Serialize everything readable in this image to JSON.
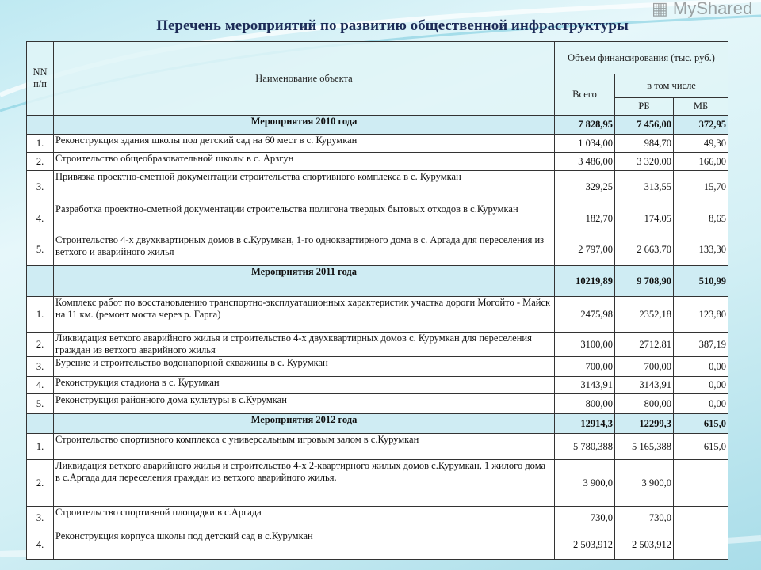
{
  "title": "Перечень мероприятий по развитию общественной инфраструктуры",
  "header": {
    "no": "NN п/п",
    "name": "Наименование объекта",
    "funding": "Объем финансирования (тыс. руб.)",
    "total": "Всего",
    "including": "в том числе",
    "rb": "РБ",
    "mb": "МБ"
  },
  "groups": [
    {
      "label": "Мероприятия 2010 года",
      "total": "7 828,95",
      "rb": "7 456,00",
      "mb": "372,95",
      "items": [
        {
          "no": "1.",
          "name": "Реконструкция здания школы под детский сад на 60 мест в с. Курумкан",
          "total": "1 034,00",
          "rb": "984,70",
          "mb": "49,30"
        },
        {
          "no": "2.",
          "name": "Строительство общеобразовательной школы в с. Арзгун",
          "total": "3 486,00",
          "rb": "3 320,00",
          "mb": "166,00"
        },
        {
          "no": "3.",
          "name": "Привязка проектно-сметной документации строительства спортивного комплекса в с. Курумкан",
          "total": "329,25",
          "rb": "313,55",
          "mb": "15,70"
        },
        {
          "no": "4.",
          "name": "Разработка проектно-сметной документации строительства полигона твердых бытовых отходов в с.Курумкан",
          "total": "182,70",
          "rb": "174,05",
          "mb": "8,65"
        },
        {
          "no": "5.",
          "name": "Строительство 4-х двухквартирных домов в с.Курумкан, 1-го одноквартирного дома в с. Аргада для переселения из ветхого и аварийного жилья",
          "total": "2 797,00",
          "rb": "2 663,70",
          "mb": "133,30"
        }
      ]
    },
    {
      "label": "Мероприятия 2011 года",
      "total": "10219,89",
      "rb": "9 708,90",
      "mb": "510,99",
      "items": [
        {
          "no": "1.",
          "name": " Комплекс работ по восстановлению транспортно-эксплуатационных характеристик участка дороги Могойто - Майск на 11 км. (ремонт моста через р. Гарга)",
          "total": "2475,98",
          "rb": "2352,18",
          "mb": "123,80"
        },
        {
          "no": "2.",
          "name": "Ликвидация ветхого аварийного жилья и строительство 4-х двухквартирных домов с. Курумкан для переселения граждан из ветхого аварийного жилья",
          "total": "3100,00",
          "rb": "2712,81",
          "mb": "387,19"
        },
        {
          "no": "3.",
          "name": "Бурение и строительство водонапорной скважины в с. Курумкан",
          "total": "700,00",
          "rb": "700,00",
          "mb": "0,00"
        },
        {
          "no": "4.",
          "name": "Реконструкция стадиона в с. Курумкан",
          "total": "3143,91",
          "rb": "3143,91",
          "mb": "0,00"
        },
        {
          "no": "5.",
          "name": "Реконструкция районного дома культуры в с.Курумкан",
          "total": "800,00",
          "rb": "800,00",
          "mb": "0,00"
        }
      ]
    },
    {
      "label": "Мероприятия 2012 года",
      "total": "12914,3",
      "rb": "12299,3",
      "mb": "615,0",
      "items": [
        {
          "no": "1.",
          "name": "Строительство спортивного комплекса с универсальным игровым залом в с.Курумкан",
          "total": "5 780,388",
          "rb": "5 165,388",
          "mb": "615,0"
        },
        {
          "no": "2.",
          "name": "Ликвидация ветхого аварийного жилья и строительство 4-х 2-квартирного жилых домов с.Курумкан, 1  жилого дома в с.Аргада для переселения граждан из ветхого аварийного жилья.",
          "total": "3 900,0",
          "rb": "3 900,0",
          "mb": ""
        },
        {
          "no": "3.",
          "name": "Строительство спортивной площадки в с.Аргада",
          "total": "730,0",
          "rb": "730,0",
          "mb": ""
        },
        {
          "no": "4.",
          "name": "Реконструкция корпуса школы под детский сад в с.Курумкан",
          "total": "2 503,912",
          "rb": "2 503,912",
          "mb": ""
        }
      ]
    }
  ],
  "watermark": "MyShared"
}
